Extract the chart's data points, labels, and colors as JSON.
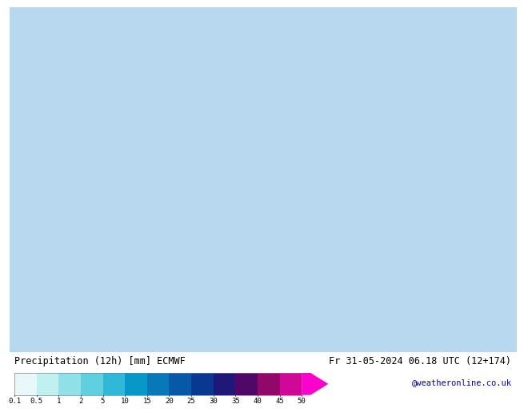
{
  "title_left": "Precipitation (12h) [mm] ECMWF",
  "title_right": "Fr 31-05-2024 06.18 UTC (12+174)",
  "credit": "@weatheronline.co.uk",
  "colorbar_values": [
    0.1,
    0.5,
    1,
    2,
    5,
    10,
    15,
    20,
    25,
    30,
    35,
    40,
    45,
    50
  ],
  "colorbar_colors": [
    "#e0f8f8",
    "#c0f0f0",
    "#a0e8e8",
    "#80dce8",
    "#60cce0",
    "#40b8d8",
    "#20a0d0",
    "#1080c0",
    "#1060b0",
    "#1040a0",
    "#200890",
    "#600880",
    "#c010a0",
    "#ff00cc",
    "#ff00ff"
  ],
  "background_color": "#ffffff",
  "map_bg": "#c8e8f8",
  "land_color": "#c8e8c8",
  "bar_height": 0.018,
  "fig_width": 6.34,
  "fig_height": 4.9
}
